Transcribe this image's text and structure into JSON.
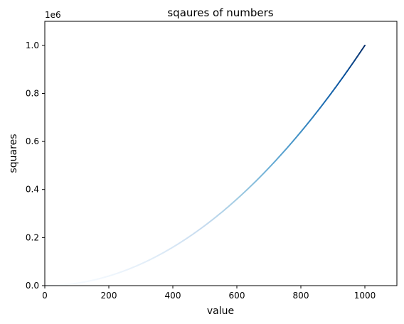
{
  "chart_data": {
    "type": "scatter",
    "title": "sqaures of numbers",
    "xlabel": "value",
    "ylabel": "squares",
    "xlim": [
      0,
      1100
    ],
    "ylim": [
      0,
      1100000
    ],
    "x_ticks": [
      0,
      200,
      400,
      600,
      800,
      1000
    ],
    "y_ticks": [
      0,
      200000,
      400000,
      600000,
      800000,
      1000000
    ],
    "x_tick_labels": [
      "0",
      "200",
      "400",
      "600",
      "800",
      "1000"
    ],
    "y_tick_labels": [
      "0.0",
      "0.2",
      "0.4",
      "0.6",
      "0.8",
      "1.0"
    ],
    "y_offset_label": "1e6",
    "colormap": "Blues",
    "color_by": "y",
    "colormap_stops": [
      "#f7fbff",
      "#deebf7",
      "#c6dbef",
      "#9ecae1",
      "#6baed6",
      "#4292c6",
      "#2171b5",
      "#08519c",
      "#08306b"
    ],
    "grid": false,
    "series": [
      {
        "x_start": 1,
        "x_end": 1000,
        "x_step": 1,
        "y": "x^2"
      }
    ]
  }
}
